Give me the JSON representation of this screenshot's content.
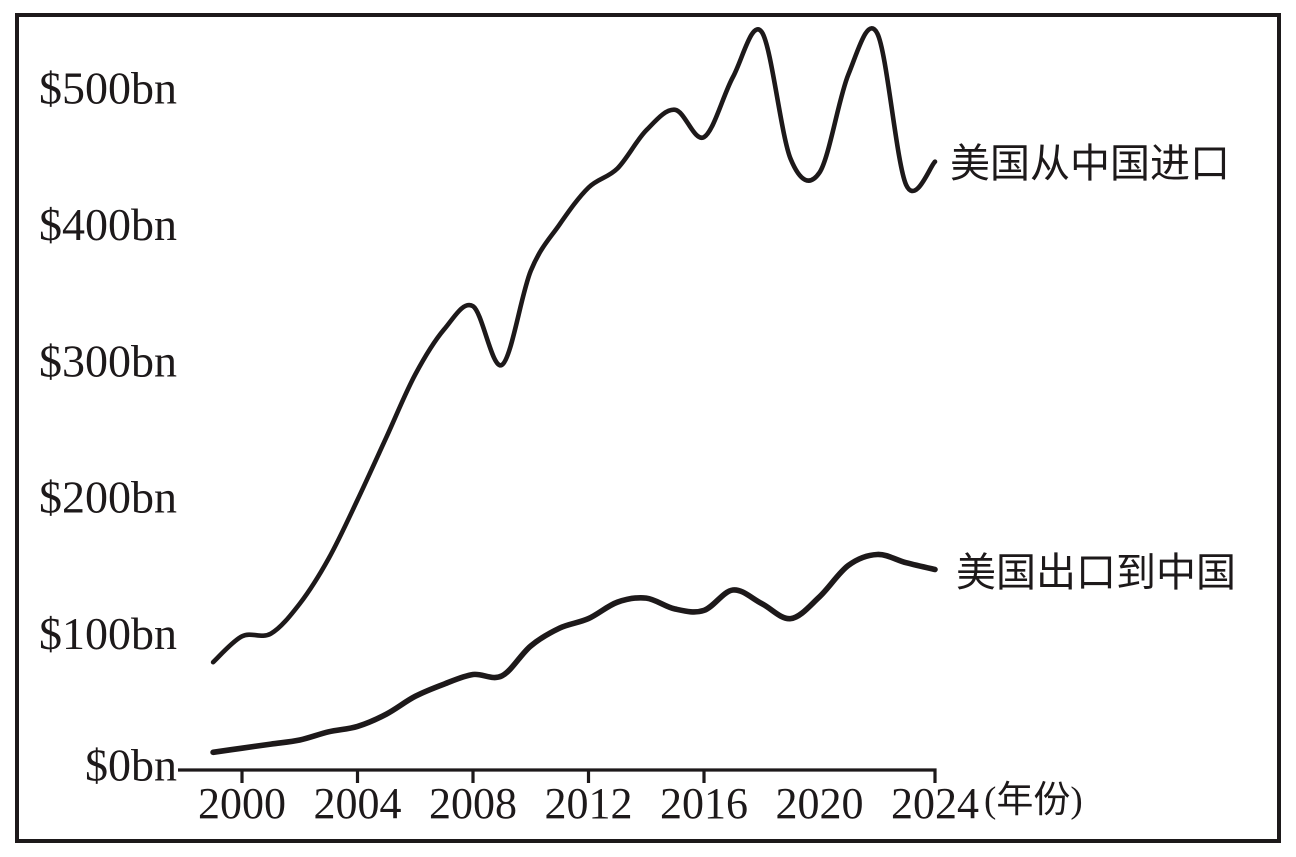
{
  "page": {
    "background_color": "#ffffff",
    "ink_color": "#1d191a",
    "title": ""
  },
  "chart_data": {
    "type": "line",
    "title": "",
    "xlabel": "",
    "ylabel": "",
    "x_axis_suffix": "(年份)",
    "x_years": [
      1999,
      2000,
      2001,
      2002,
      2003,
      2004,
      2005,
      2006,
      2007,
      2008,
      2009,
      2010,
      2011,
      2012,
      2013,
      2014,
      2015,
      2016,
      2017,
      2018,
      2019,
      2020,
      2021,
      2022,
      2023,
      2024
    ],
    "series": [
      {
        "name": "美国从中国进口",
        "unit": "$bn",
        "values": [
          79,
          98,
          100,
          122,
          155,
          198,
          244,
          290,
          323,
          340,
          297,
          366,
          400,
          427,
          441,
          469,
          484,
          464,
          508,
          541,
          448,
          438,
          510,
          540,
          429,
          446
        ]
      },
      {
        "name": "美国出口到中国",
        "unit": "$bn",
        "values": [
          13,
          16,
          19,
          22,
          28,
          32,
          41,
          54,
          63,
          70,
          69,
          91,
          104,
          111,
          123,
          126,
          118,
          117,
          132,
          122,
          111,
          127,
          150,
          158,
          152,
          147
        ]
      }
    ],
    "yticks": [
      {
        "value": 0,
        "label": "$0bn"
      },
      {
        "value": 100,
        "label": "$100bn"
      },
      {
        "value": 200,
        "label": "$200bn"
      },
      {
        "value": 300,
        "label": "$300bn"
      },
      {
        "value": 400,
        "label": "$400bn"
      },
      {
        "value": 500,
        "label": "$500bn"
      }
    ],
    "xticks": [
      {
        "value": 2000,
        "label": "2000",
        "tick_mark": true
      },
      {
        "value": 2004,
        "label": "2004",
        "tick_mark": true
      },
      {
        "value": 2008,
        "label": "2008",
        "tick_mark": true
      },
      {
        "value": 2012,
        "label": "2012",
        "tick_mark": true
      },
      {
        "value": 2016,
        "label": "2016",
        "tick_mark": true
      },
      {
        "value": 2020,
        "label": "2020",
        "tick_mark": false
      },
      {
        "value": 2024,
        "label": "2024",
        "tick_mark": true
      }
    ],
    "xlim": [
      1999,
      2024
    ],
    "ylim": [
      0,
      560
    ],
    "grid": false,
    "legend_position": "line-end-labels-right",
    "line_color": "#1d191a"
  }
}
